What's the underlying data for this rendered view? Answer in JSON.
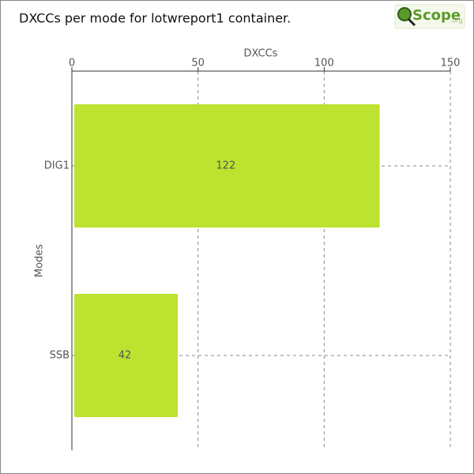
{
  "chart_data": {
    "type": "hbar",
    "title": "DXCCs per mode for lotwreport1 container.",
    "x_label": "DXCCs",
    "y_label": "Modes",
    "categories": [
      "DIG1",
      "SSB"
    ],
    "values": [
      122,
      42
    ],
    "color": "#bde22f",
    "xlim": [
      0,
      150
    ],
    "xticks": [
      0,
      50,
      100,
      150
    ],
    "grid": true
  },
  "logo": {
    "text": "Scope",
    "suffix": ".org"
  }
}
